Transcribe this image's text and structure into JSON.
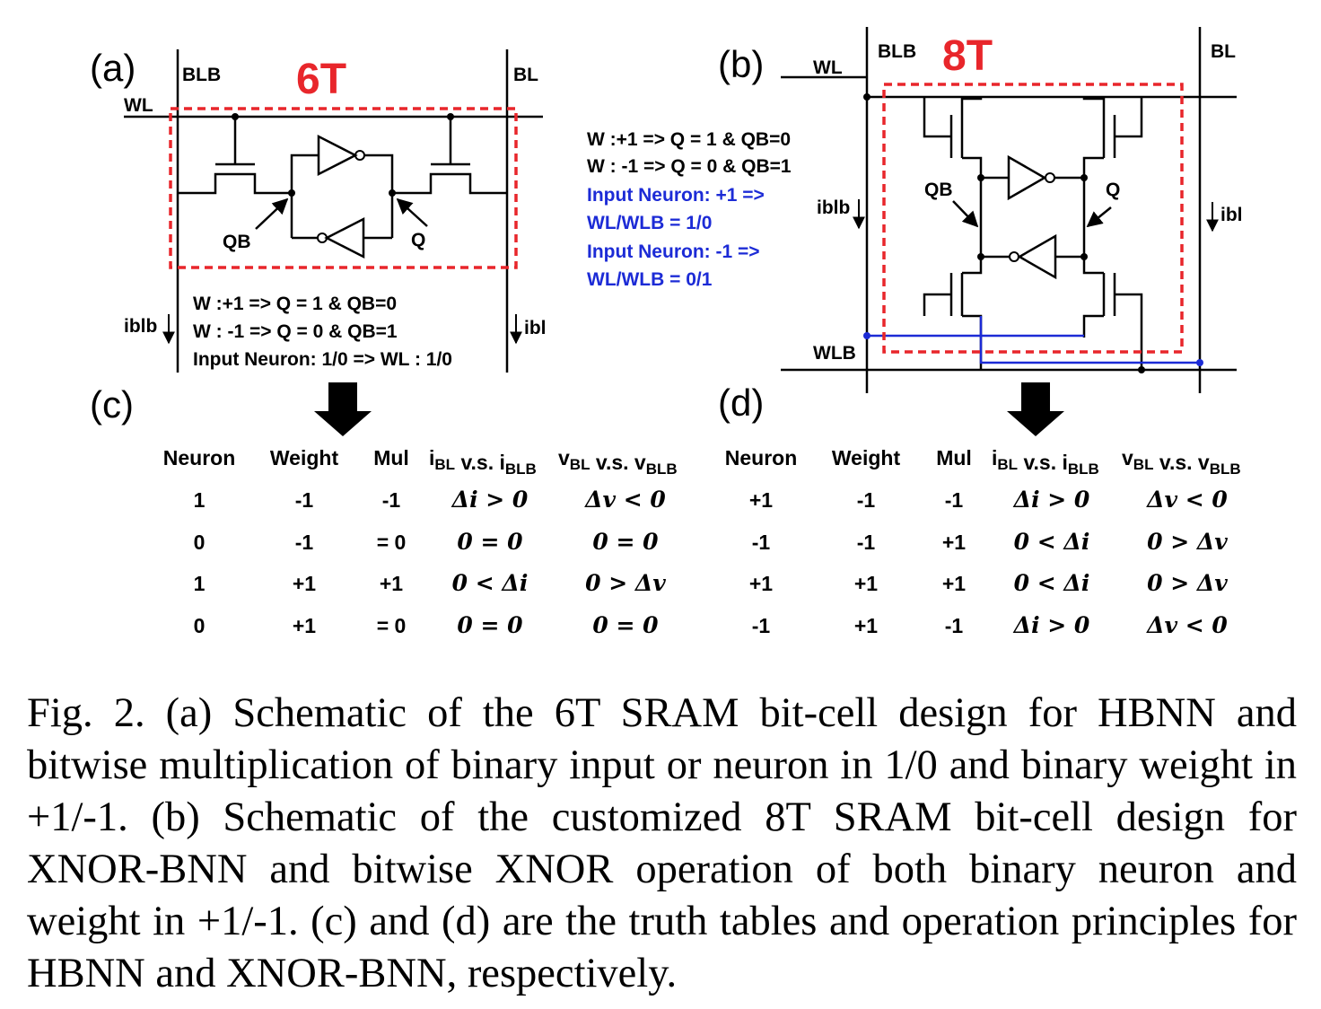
{
  "panel_a": {
    "tag": "(a)",
    "title": "6T",
    "labels": {
      "blb": "BLB",
      "bl": "BL",
      "wl": "WL",
      "qb": "QB",
      "q": "Q",
      "iblb": "iblb",
      "ibl": "ibl"
    },
    "notes": [
      "W :+1   => Q = 1 & QB=0",
      "W : -1   => Q = 0 & QB=1",
      "Input Neuron: 1/0   => WL : 1/0"
    ]
  },
  "panel_b": {
    "tag": "(b)",
    "title": "8T",
    "labels": {
      "blb": "BLB",
      "bl": "BL",
      "wl": "WL",
      "wlb": "WLB",
      "qb": "QB",
      "q": "Q",
      "iblb": "iblb",
      "ibl": "ibl"
    },
    "notes": [
      "W :+1   => Q = 1 & QB=0",
      "W : -1   => Q = 0 & QB=1"
    ],
    "blue_notes": [
      "Input Neuron: +1   =>",
      "WL/WLB = 1/0",
      "Input Neuron:  -1   =>",
      "WL/WLB = 0/1"
    ]
  },
  "panel_c": {
    "tag": "(c)",
    "headers": [
      "Neuron",
      "Weight",
      "Mul"
    ],
    "rows": [
      [
        "1",
        "-1",
        "-1",
        "Δi > 0",
        "Δv < 0"
      ],
      [
        "0",
        "-1",
        "= 0",
        "0 = 0",
        "0 = 0"
      ],
      [
        "1",
        "+1",
        "+1",
        "0 < Δi",
        "0 > Δv"
      ],
      [
        "0",
        "+1",
        "= 0",
        "0 = 0",
        "0 = 0"
      ]
    ]
  },
  "panel_d": {
    "tag": "(d)",
    "headers": [
      "Neuron",
      "Weight",
      "Mul"
    ],
    "rows": [
      [
        "+1",
        "-1",
        "-1",
        "Δi > 0",
        "Δv < 0"
      ],
      [
        "-1",
        "-1",
        "+1",
        "0 < Δi",
        "0 > Δv"
      ],
      [
        "+1",
        "+1",
        "+1",
        "0 < Δi",
        "0 > Δv"
      ],
      [
        "-1",
        "+1",
        "-1",
        "Δi > 0",
        "Δv < 0"
      ]
    ]
  },
  "cmp_header": {
    "i_main": "i",
    "i_sub": "BL",
    "i_vs": "v.s.",
    "i2_main": "i",
    "i2_sub": "BLB",
    "v_main": "v",
    "v_sub": "BL",
    "v_vs": "v.s.",
    "v2_main": "v",
    "v2_sub": "BLB"
  },
  "caption": "Fig. 2. (a) Schematic of the 6T SRAM bit-cell design for HBNN and bitwise multiplication of binary input or neuron in 1/0 and binary weight in +1/-1. (b) Schematic of the customized 8T SRAM bit-cell design for XNOR-BNN and bitwise XNOR operation of both binary neuron and weight in +1/-1. (c) and (d) are the truth tables and operation principles for HBNN and XNOR-BNN, respectively."
}
